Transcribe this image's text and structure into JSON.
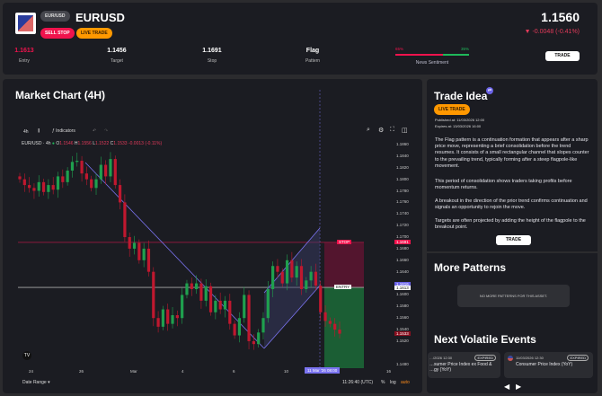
{
  "header": {
    "pair_badge": "EUR/USD",
    "symbol": "EURUSD",
    "order_type": "SELL STOP",
    "status": "LIVE TRADE",
    "price": "1.1560",
    "change": "▼ -0.0048 (-0.41%)",
    "trade_label": "TRADE",
    "stats": [
      {
        "value": "1.1613",
        "label": "Entry"
      },
      {
        "value": "1.1456",
        "label": "Target"
      },
      {
        "value": "1.1691",
        "label": "Stop"
      },
      {
        "value": "Flag",
        "label": "Pattern"
      }
    ],
    "sentiment": {
      "label": "News Sentiment",
      "bearish": "65%",
      "bullish": "35%",
      "bearish_pct": 65
    },
    "colors": {
      "sell": "#f0134d",
      "live": "#ff9800",
      "down": "#e33a5a",
      "up": "#1fb85a"
    }
  },
  "chart": {
    "title": "Market Chart (4H)",
    "interval": "4h",
    "indicators": "Indicators",
    "legend_symbol": "EUR/USD · 4h",
    "ohlc": {
      "o": "1.1546",
      "h": "1.1556",
      "l": "1.1522",
      "c": "1.1533",
      "chg": "-0.0013 (-0.11%)"
    },
    "price_ticks": [
      "1.1860",
      "1.1840",
      "1.1820",
      "1.1800",
      "1.1780",
      "1.1760",
      "1.1740",
      "1.1720",
      "1.1700",
      "1.1680",
      "1.1660",
      "1.1640",
      "1.1600",
      "1.1580",
      "1.1560",
      "1.1540",
      "1.1520",
      "1.1480"
    ],
    "tags": {
      "stop": "STOP",
      "stop_price": "1.1691",
      "entry": "ENTRY",
      "entry_price": "1.1613",
      "last_price": "1.1616",
      "current_price": "1.1533"
    },
    "time_ticks": [
      "24",
      "26",
      "Mar",
      "4",
      "6",
      "10",
      "16"
    ],
    "crosshair_time": "11 Mar '26  08:00",
    "date_range": "Date Range",
    "clock": "11:26:40 (UTC)",
    "pct": "%",
    "log": "log",
    "auto": "auto",
    "closes": [
      1.18,
      1.179,
      1.1785,
      1.178,
      1.1795,
      1.1778,
      1.179,
      1.1782,
      1.1805,
      1.1795,
      1.1815,
      1.183,
      1.1832,
      1.181,
      1.18,
      1.1785,
      1.18,
      1.1825,
      1.1805,
      1.1835,
      1.179,
      1.176,
      1.17,
      1.168,
      1.169,
      1.166,
      1.168,
      1.164,
      1.156,
      1.1545,
      1.1575,
      1.155,
      1.1565,
      1.156,
      1.16,
      1.162,
      1.161,
      1.162,
      1.159,
      1.1615,
      1.157,
      1.159,
      1.1575,
      1.159,
      1.155,
      1.153,
      1.156,
      1.16,
      1.152,
      1.1515,
      1.1535,
      1.156,
      1.161,
      1.165,
      1.164,
      1.162,
      1.166,
      1.163,
      1.165,
      1.161,
      1.1625,
      1.164,
      1.1616,
      1.157,
      1.1555,
      1.155,
      1.154,
      1.1533
    ]
  },
  "idea": {
    "title": "Trade Idea",
    "status": "LIVE TRADE",
    "published": "Published at: 11/03/2026 12:00",
    "expires": "Expires at: 13/03/2026 16:00",
    "paragraphs": [
      "The Flag pattern is a continuation formation that appears after a sharp price move, representing a brief consolidation before the trend resumes. It consists of a small rectangular channel that slopes counter to the prevailing trend, typically forming after a steep flagpole-like movement.",
      "This period of consolidation shows traders taking profits before momentum returns.",
      "A breakout in the direction of the prior trend confirms continuation and signals an opportunity to rejoin the move.",
      "Targets are often projected by adding the height of the flagpole to the breakout point."
    ],
    "trade_label": "TRADE"
  },
  "patterns": {
    "title": "More Patterns",
    "empty": "NO MORE PATTERNS FOR THIS ASSET."
  },
  "events": {
    "title": "Next Volatile Events",
    "items": [
      {
        "time": "…/2026 12:30",
        "name": "…sumer Price Index ex Food & …gy (YoY)",
        "badge": "EXPIRED"
      },
      {
        "time": "11/03/2026 12:30",
        "name": "Consumer Price Index (YoY)",
        "badge": "EXPIRED"
      }
    ]
  }
}
